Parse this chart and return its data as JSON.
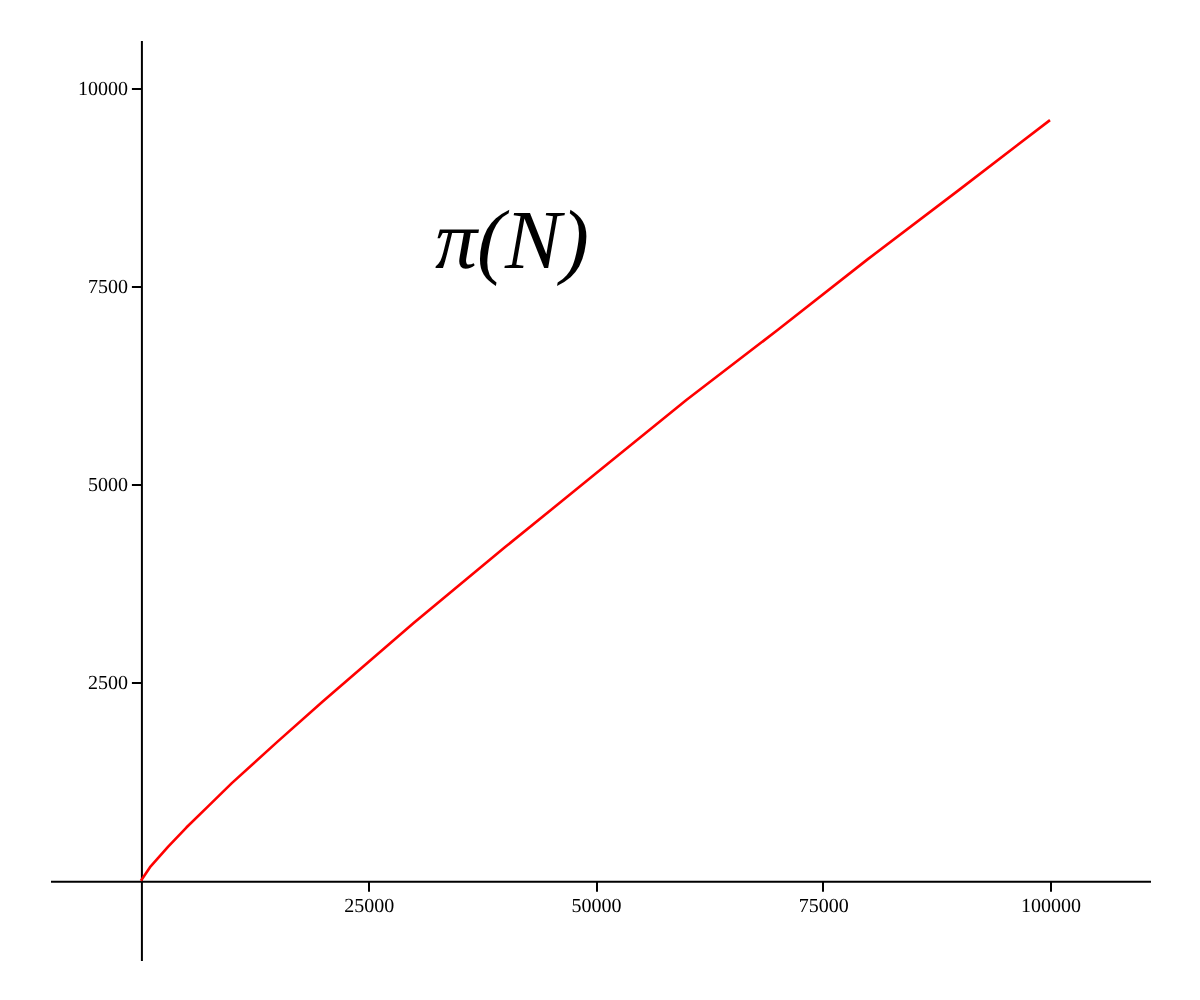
{
  "chart_data": {
    "type": "line",
    "title": "π(N)",
    "x": [
      0,
      1000,
      2000,
      3000,
      5000,
      7500,
      10000,
      15000,
      20000,
      30000,
      40000,
      50000,
      60000,
      70000,
      80000,
      90000,
      100000
    ],
    "series": [
      {
        "color": "#ff0000",
        "values": [
          0,
          170,
          300,
          430,
          670,
          950,
          1230,
          1750,
          2260,
          3250,
          4200,
          5130,
          6060,
          6940,
          7840,
          8710,
          9590
        ]
      }
    ],
    "xlim": [
      -10000,
      111000
    ],
    "ylim": [
      -1000,
      10600
    ],
    "xticks": [
      25000,
      50000,
      75000,
      100000
    ],
    "yticks": [
      2500,
      5000,
      7500,
      10000
    ],
    "grid": false,
    "marker": "none",
    "line_style": "solid"
  }
}
